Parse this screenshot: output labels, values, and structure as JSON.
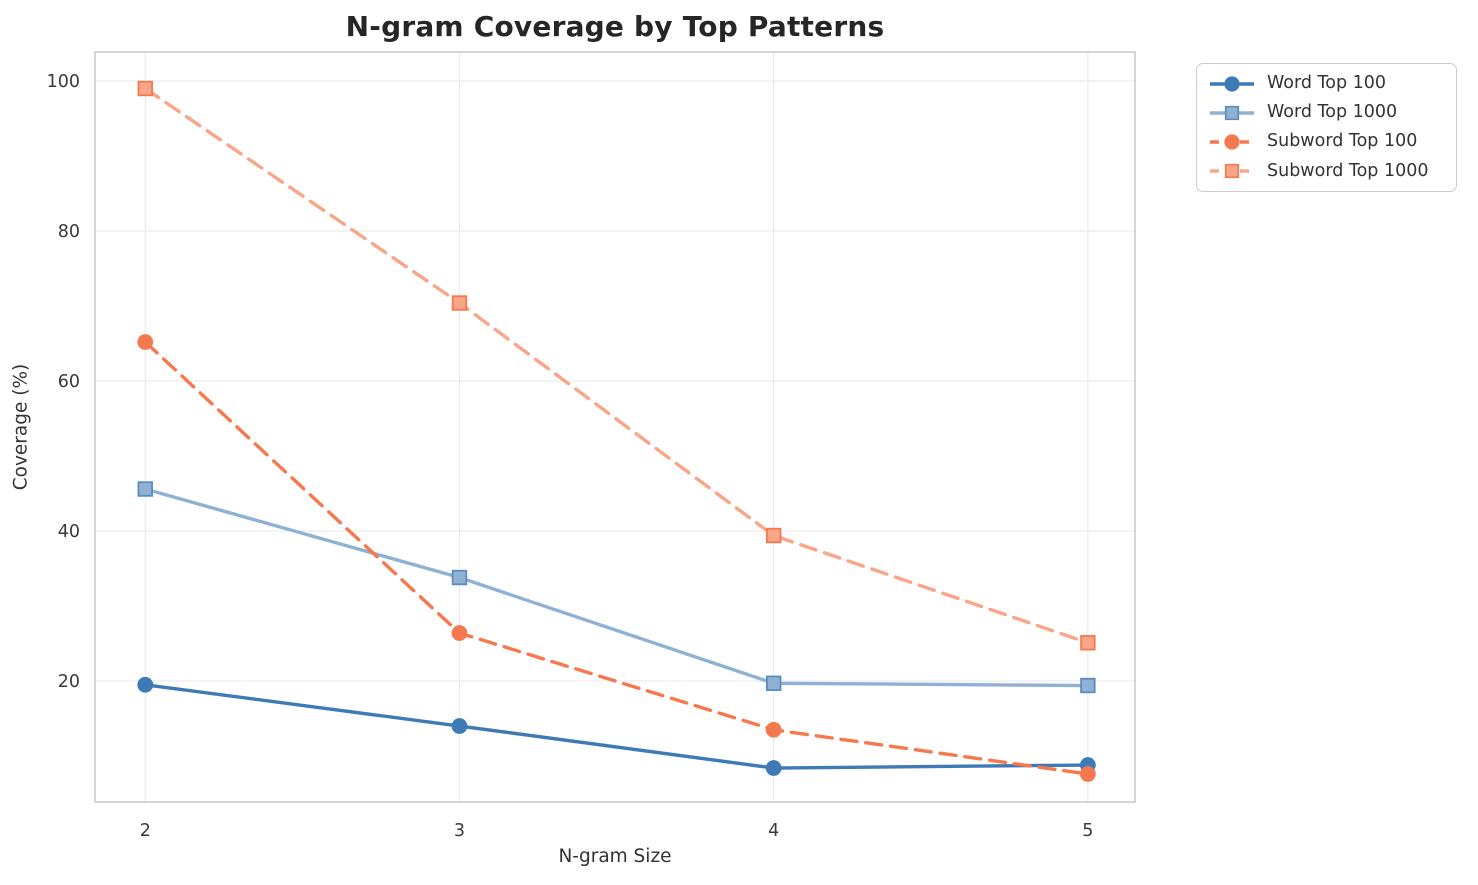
{
  "chart_data": {
    "type": "line",
    "title": "N-gram Coverage by Top Patterns",
    "xlabel": "N-gram Size",
    "ylabel": "Coverage (%)",
    "x": [
      2,
      3,
      4,
      5
    ],
    "xticks": [
      2,
      3,
      4,
      5
    ],
    "yticks": [
      20,
      40,
      60,
      80,
      100
    ],
    "xlim": [
      1.84,
      5.15
    ],
    "ylim": [
      3.87,
      103.87
    ],
    "grid": true,
    "legend_position": "outside-upper-right",
    "series": [
      {
        "name": "Word Top 100",
        "values": [
          19.5,
          14.0,
          8.4,
          8.8
        ],
        "color": "#3d7ab6",
        "marker": "circle",
        "marker_edge": "#3d7ab6",
        "dash": "solid"
      },
      {
        "name": "Word Top 1000",
        "values": [
          45.6,
          33.8,
          19.7,
          19.4
        ],
        "color": "#8fb2d4",
        "marker": "square",
        "marker_edge": "#5a8cc0",
        "dash": "solid"
      },
      {
        "name": "Subword Top 100",
        "values": [
          65.2,
          26.4,
          13.5,
          7.6
        ],
        "color": "#f6784e",
        "marker": "circle",
        "marker_edge": "#f6784e",
        "dash": "dashed"
      },
      {
        "name": "Subword Top 1000",
        "values": [
          99.0,
          70.4,
          39.4,
          25.1
        ],
        "color": "#f9a588",
        "marker": "square",
        "marker_edge": "#f6784e",
        "dash": "dashed"
      }
    ]
  },
  "axes_style": {
    "grid_color": "#ececec",
    "spine_color": "#c8c8c8",
    "tick_color": "#3a3a3a",
    "background": "#ffffff"
  }
}
